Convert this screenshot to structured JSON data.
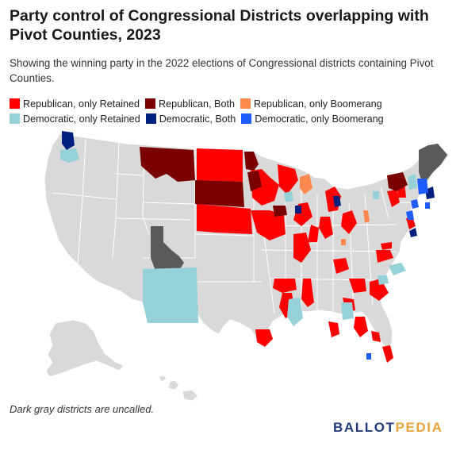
{
  "title": "Party control of Congressional Districts overlapping with Pivot Counties, 2023",
  "subtitle": "Showing the winning party in the 2022 elections of Congressional districts containing Pivot Counties.",
  "legend": [
    {
      "label": "Republican, only Retained",
      "color": "#ff0000"
    },
    {
      "label": "Republican, Both",
      "color": "#7a0000"
    },
    {
      "label": "Republican, only Boomerang",
      "color": "#ff8a50"
    },
    {
      "label": "Democratic, only Retained",
      "color": "#96d0d8"
    },
    {
      "label": "Democratic, Both",
      "color": "#002080"
    },
    {
      "label": "Democratic, only Boomerang",
      "color": "#1f5cff"
    }
  ],
  "colors": {
    "base": "#d9d9d9",
    "border": "#ffffff",
    "uncalled": "#5a5a5a"
  },
  "note": "Dark gray districts are uncalled.",
  "logo": {
    "part1": "BALLOT",
    "part2": "PEDIA",
    "color1": "#1f3b7a",
    "color2": "#e8a33a"
  }
}
